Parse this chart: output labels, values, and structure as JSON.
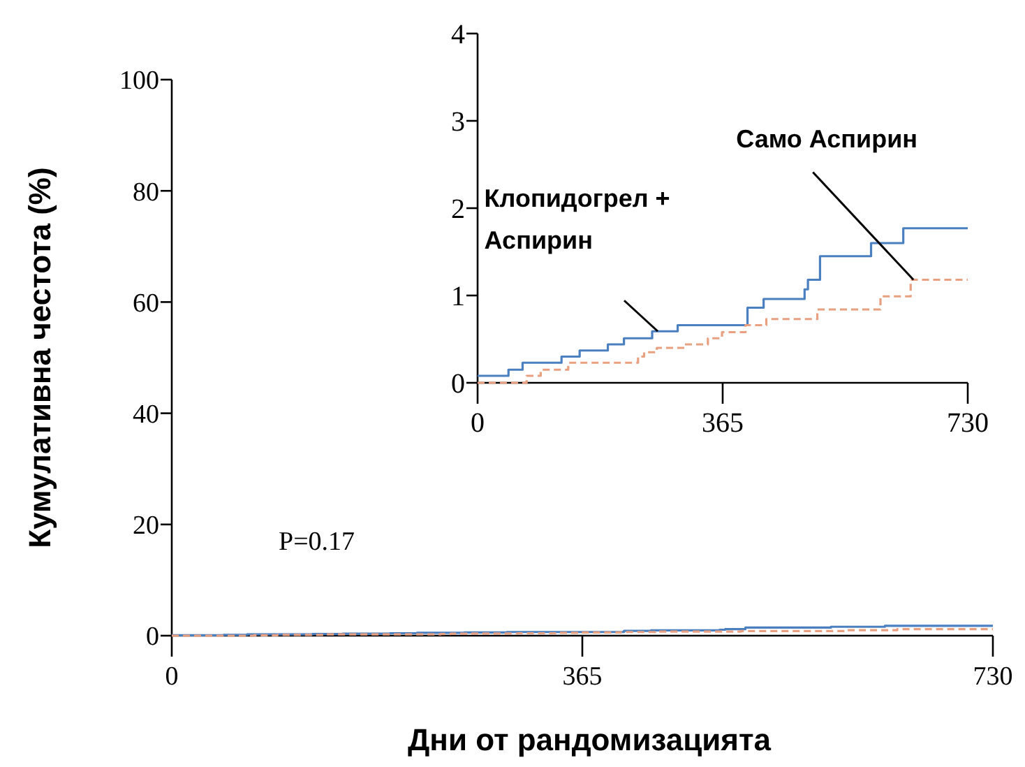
{
  "chart_data": [
    {
      "type": "step",
      "xlabel": "Дни от рандомизацията",
      "ylabel": "Кумулативна честота (%)",
      "xlim": [
        0,
        730
      ],
      "xticks": [
        0,
        365,
        730
      ],
      "ylim": [
        0,
        100
      ],
      "yticks": [
        0,
        20,
        40,
        60,
        80,
        100
      ],
      "annotations": [
        "P=0.17"
      ],
      "series": [
        {
          "color": "#4a7fc0",
          "line_style": "solid",
          "x": [
            0,
            46,
            67,
            125,
            152,
            194,
            218,
            260,
            298,
            402,
            426,
            487,
            492,
            510,
            586,
            634,
            730
          ],
          "values": [
            0.08,
            0.15,
            0.23,
            0.3,
            0.37,
            0.44,
            0.51,
            0.59,
            0.66,
            0.86,
            0.96,
            1.07,
            1.18,
            1.45,
            1.6,
            1.77,
            1.77
          ]
        },
        {
          "color": "#e8a080",
          "line_style": "dashed",
          "x": [
            0,
            73,
            94,
            135,
            239,
            248,
            267,
            308,
            343,
            364,
            399,
            430,
            506,
            600,
            645,
            730
          ],
          "values": [
            0,
            0.08,
            0.15,
            0.23,
            0.3,
            0.35,
            0.4,
            0.44,
            0.51,
            0.58,
            0.66,
            0.73,
            0.84,
            0.99,
            1.18,
            1.18
          ]
        }
      ]
    },
    {
      "type": "step",
      "xlim": [
        0,
        730
      ],
      "xticks": [
        0,
        365,
        730
      ],
      "ylim": [
        0,
        4
      ],
      "yticks": [
        0,
        1,
        2,
        3,
        4
      ],
      "series": [
        {
          "name": "Клопидогрел + Аспирин",
          "color": "#4a7fc0",
          "line_style": "solid",
          "x": [
            0,
            46,
            67,
            125,
            152,
            194,
            218,
            260,
            298,
            402,
            426,
            487,
            492,
            510,
            586,
            634,
            730
          ],
          "values": [
            0.08,
            0.15,
            0.23,
            0.3,
            0.37,
            0.44,
            0.51,
            0.59,
            0.66,
            0.86,
            0.96,
            1.07,
            1.18,
            1.45,
            1.6,
            1.77,
            1.77
          ]
        },
        {
          "name": "Само Аспирин",
          "color": "#e8a080",
          "line_style": "dashed",
          "x": [
            0,
            73,
            94,
            135,
            239,
            248,
            267,
            308,
            343,
            364,
            399,
            430,
            506,
            600,
            645,
            730
          ],
          "values": [
            0,
            0.08,
            0.15,
            0.23,
            0.3,
            0.35,
            0.4,
            0.44,
            0.51,
            0.58,
            0.66,
            0.73,
            0.84,
            0.99,
            1.18,
            1.18
          ]
        }
      ]
    }
  ]
}
